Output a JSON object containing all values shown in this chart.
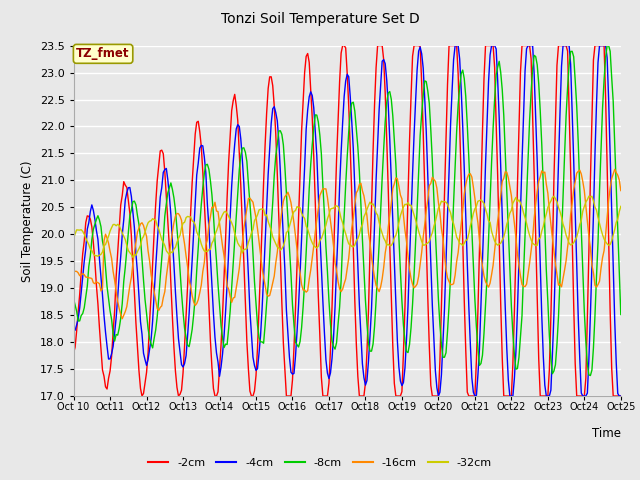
{
  "title": "Tonzi Soil Temperature Set D",
  "xlabel": "Time",
  "ylabel": "Soil Temperature (C)",
  "ylim": [
    17.0,
    23.5
  ],
  "yticks": [
    17.0,
    17.5,
    18.0,
    18.5,
    19.0,
    19.5,
    20.0,
    20.5,
    21.0,
    21.5,
    22.0,
    22.5,
    23.0,
    23.5
  ],
  "bg_color": "#e8e8e8",
  "legend_label": "TZ_fmet",
  "legend_text_color": "#8B0000",
  "legend_bg": "#ffffcc",
  "legend_border": "#999900",
  "series_colors": {
    "-2cm": "#ff0000",
    "-4cm": "#0000ff",
    "-8cm": "#00cc00",
    "-16cm": "#ff8800",
    "-32cm": "#cccc00"
  },
  "x_tick_labels": [
    "Oct 10",
    "Oct 11",
    "Oct 12",
    "Oct 13",
    "Oct 14",
    "Oct 15",
    "Oct 16",
    "Oct 17",
    "Oct 18",
    "Oct 19",
    "Oct 20",
    "Oct 21",
    "Oct 22",
    "Oct 23",
    "Oct 24",
    "Oct 25"
  ],
  "n_points": 361
}
